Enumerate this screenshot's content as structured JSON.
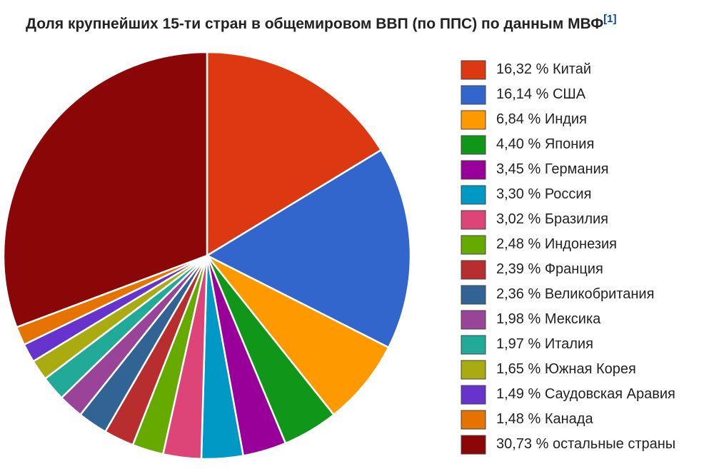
{
  "chart_data": {
    "type": "pie",
    "title": "Доля крупнейших 15-ти стран в общемировом ВВП (по ППС) по данным МВФ",
    "title_ref": "[1]",
    "categories": [
      "Китай",
      "США",
      "Индия",
      "Япония",
      "Германия",
      "Россия",
      "Бразилия",
      "Индонезия",
      "Франция",
      "Великобритания",
      "Мексика",
      "Италия",
      "Южная Корея",
      "Саудовская Аравия",
      "Канада",
      "остальные страны"
    ],
    "values": [
      16.32,
      16.14,
      6.84,
      4.4,
      3.45,
      3.3,
      3.02,
      2.48,
      2.39,
      2.36,
      1.98,
      1.97,
      1.65,
      1.49,
      1.48,
      30.73
    ],
    "value_labels": [
      "16,32 %",
      "16,14 %",
      "6,84 %",
      "4,40 %",
      "3,45 %",
      "3,30 %",
      "3,02 %",
      "2,48 %",
      "2,39 %",
      "2,36 %",
      "1,98 %",
      "1,97 %",
      "1,65 %",
      "1,49 %",
      "1,48 %",
      "30,73 %"
    ],
    "colors": [
      "#dc3912",
      "#3366cc",
      "#ff9900",
      "#109618",
      "#990099",
      "#0099c6",
      "#dd4477",
      "#66aa00",
      "#b82e2e",
      "#316395",
      "#994499",
      "#22aa99",
      "#aaaa11",
      "#6633cc",
      "#e67300",
      "#8b0707"
    ],
    "legend": "right"
  }
}
